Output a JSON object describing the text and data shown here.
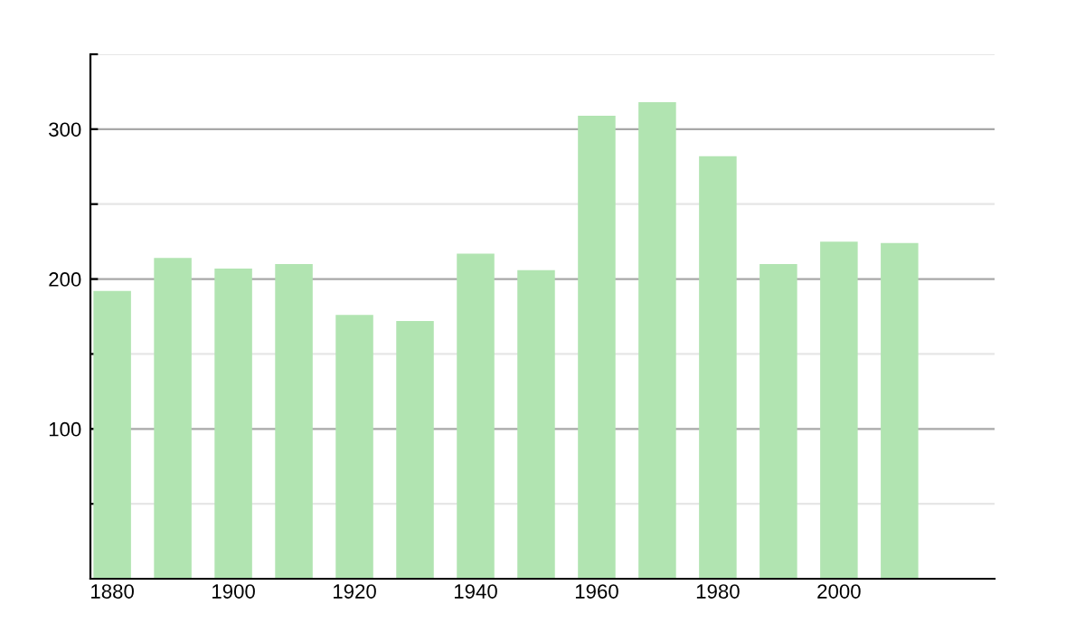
{
  "chart_data": {
    "type": "bar",
    "x": [
      1880,
      1890,
      1900,
      1910,
      1920,
      1930,
      1940,
      1950,
      1960,
      1970,
      1980,
      1990,
      2000,
      2010
    ],
    "values": [
      192,
      214,
      207,
      210,
      176,
      172,
      217,
      206,
      309,
      318,
      282,
      210,
      225,
      224
    ],
    "color": "#b1e4b1",
    "xlim": [
      1876.4,
      2025.7
    ],
    "xticks": [
      1880,
      1900,
      1920,
      1940,
      1960,
      1980,
      2000
    ],
    "ylim": [
      0,
      350
    ],
    "yticks": [
      {
        "value": 50,
        "label": null
      },
      100,
      {
        "value": 150,
        "label": null
      },
      200,
      {
        "value": 250,
        "label": null
      },
      300,
      {
        "value": 350,
        "label": null
      }
    ],
    "grid": "y"
  }
}
